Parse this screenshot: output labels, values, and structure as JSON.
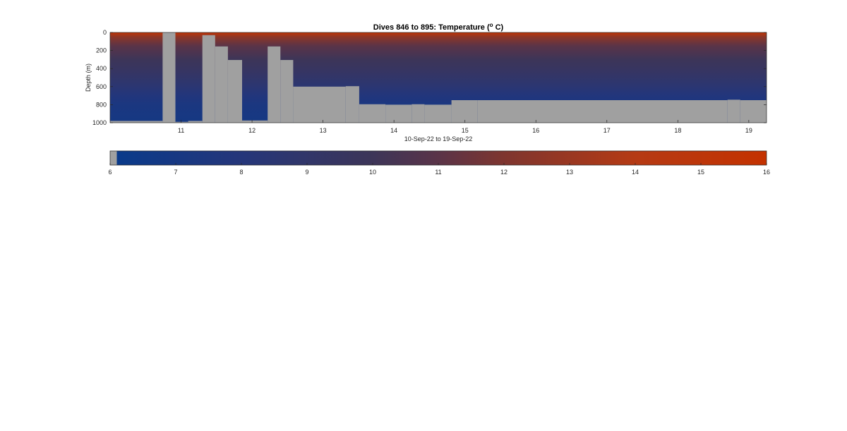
{
  "chart_data": [
    {
      "type": "heatmap",
      "title": "Dives 846 to 895: Temperature (",
      "title_superscript": "o",
      "title_suffix": " C)",
      "xlabel": "10-Sep-22 to 19-Sep-22",
      "ylabel": "Depth (m)",
      "xlim": [
        10.0,
        19.25
      ],
      "ylim": [
        1000,
        0
      ],
      "y_reversed": true,
      "xticks": [
        11,
        12,
        13,
        14,
        15,
        16,
        17,
        18,
        19
      ],
      "yticks": [
        0,
        200,
        400,
        600,
        800,
        1000
      ],
      "surface_temperature_c": 15.5,
      "temperature_at_depth": [
        {
          "depth_m": 0,
          "temp_c": 15.5
        },
        {
          "depth_m": 50,
          "temp_c": 12.5
        },
        {
          "depth_m": 150,
          "temp_c": 11.0
        },
        {
          "depth_m": 300,
          "temp_c": 10.0
        },
        {
          "depth_m": 450,
          "temp_c": 9.3
        },
        {
          "depth_m": 600,
          "temp_c": 8.5
        },
        {
          "depth_m": 700,
          "temp_c": 7.8
        },
        {
          "depth_m": 800,
          "temp_c": 7.3
        },
        {
          "depth_m": 1000,
          "temp_c": 6.9
        }
      ],
      "no_data_color": "#a0a0a0",
      "no_data_regions": [
        {
          "x_start": 10.0,
          "x_end": 10.74,
          "top_depth_m": 980
        },
        {
          "x_start": 10.74,
          "x_end": 10.92,
          "top_depth_m": 0
        },
        {
          "x_start": 10.92,
          "x_end": 11.1,
          "top_depth_m": 990
        },
        {
          "x_start": 11.1,
          "x_end": 11.3,
          "top_depth_m": 980
        },
        {
          "x_start": 11.3,
          "x_end": 11.48,
          "top_depth_m": 30
        },
        {
          "x_start": 11.48,
          "x_end": 11.66,
          "top_depth_m": 155
        },
        {
          "x_start": 11.66,
          "x_end": 11.86,
          "top_depth_m": 305
        },
        {
          "x_start": 11.86,
          "x_end": 12.22,
          "top_depth_m": 975
        },
        {
          "x_start": 12.22,
          "x_end": 12.4,
          "top_depth_m": 155
        },
        {
          "x_start": 12.4,
          "x_end": 12.58,
          "top_depth_m": 305
        },
        {
          "x_start": 12.58,
          "x_end": 13.32,
          "top_depth_m": 600
        },
        {
          "x_start": 13.32,
          "x_end": 13.51,
          "top_depth_m": 595
        },
        {
          "x_start": 13.51,
          "x_end": 13.88,
          "top_depth_m": 795
        },
        {
          "x_start": 13.88,
          "x_end": 14.25,
          "top_depth_m": 800
        },
        {
          "x_start": 14.25,
          "x_end": 14.43,
          "top_depth_m": 795
        },
        {
          "x_start": 14.43,
          "x_end": 14.81,
          "top_depth_m": 800
        },
        {
          "x_start": 14.81,
          "x_end": 15.18,
          "top_depth_m": 750
        },
        {
          "x_start": 15.18,
          "x_end": 18.7,
          "top_depth_m": 750
        },
        {
          "x_start": 18.7,
          "x_end": 18.88,
          "top_depth_m": 745
        },
        {
          "x_start": 18.88,
          "x_end": 19.25,
          "top_depth_m": 750
        }
      ]
    },
    {
      "type": "heatmap",
      "role": "colorbar",
      "clim": [
        6,
        16
      ],
      "ticks": [
        6,
        7,
        8,
        9,
        10,
        11,
        12,
        13,
        14,
        15,
        16
      ],
      "colormap": [
        {
          "value": 6.0,
          "color": "#a0a0a0"
        },
        {
          "value": 6.1,
          "color": "#0a3a8a"
        },
        {
          "value": 8.0,
          "color": "#25367a"
        },
        {
          "value": 10.0,
          "color": "#3d3558"
        },
        {
          "value": 11.0,
          "color": "#5a3448"
        },
        {
          "value": 12.0,
          "color": "#7e352f"
        },
        {
          "value": 14.0,
          "color": "#b53a14"
        },
        {
          "value": 16.0,
          "color": "#c43200"
        }
      ]
    }
  ]
}
